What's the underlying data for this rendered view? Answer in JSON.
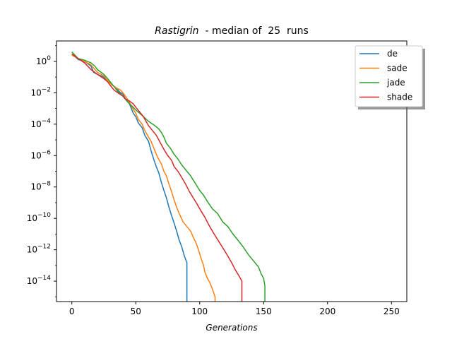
{
  "chart_data": {
    "type": "line",
    "title_italic": "Rastigrin",
    "title_rest": "  - median of  25  runs",
    "xlabel": "Generations",
    "ylabel": "",
    "xlim": [
      -12,
      262
    ],
    "ylim": [
      5e-16,
      20
    ],
    "y_scale": "log",
    "x_ticks": [
      0,
      50,
      100,
      150,
      200,
      250
    ],
    "x_tick_labels": [
      "0",
      "50",
      "100",
      "150",
      "200",
      "250"
    ],
    "y_ticks": [
      {
        "base": "10",
        "exp": "0",
        "value": 1
      },
      {
        "base": "10",
        "exp": "−2",
        "value": 0.01
      },
      {
        "base": "10",
        "exp": "−4",
        "value": 0.0001
      },
      {
        "base": "10",
        "exp": "−6",
        "value": 1e-06
      },
      {
        "base": "10",
        "exp": "−8",
        "value": 1e-08
      },
      {
        "base": "10",
        "exp": "−10",
        "value": 1e-10
      },
      {
        "base": "10",
        "exp": "−12",
        "value": 1e-12
      },
      {
        "base": "10",
        "exp": "−14",
        "value": 1e-14
      }
    ],
    "grid": false,
    "legend_position": "top-right",
    "series": [
      {
        "name": "de",
        "color": "#1f77b4",
        "points": [
          [
            0,
            3
          ],
          [
            5,
            1.3
          ],
          [
            10,
            1
          ],
          [
            15,
            0.5
          ],
          [
            17,
            0.2
          ],
          [
            20,
            0.15
          ],
          [
            25,
            0.1
          ],
          [
            27,
            0.06
          ],
          [
            30,
            0.05
          ],
          [
            32,
            0.03
          ],
          [
            33,
            0.025
          ],
          [
            35,
            0.02
          ],
          [
            37,
            0.012
          ],
          [
            40,
            0.008
          ],
          [
            42,
            0.004
          ],
          [
            44,
            0.0025
          ],
          [
            45,
            0.002
          ],
          [
            47,
            0.0008
          ],
          [
            48,
            0.0005
          ],
          [
            50,
            0.0003
          ],
          [
            52,
            0.00012
          ],
          [
            55,
            6e-05
          ],
          [
            57,
            2e-05
          ],
          [
            60,
            8e-06
          ],
          [
            62,
            2e-06
          ],
          [
            64,
            6e-07
          ],
          [
            66,
            2e-07
          ],
          [
            68,
            8e-08
          ],
          [
            70,
            2e-08
          ],
          [
            72,
            6e-09
          ],
          [
            74,
            2e-09
          ],
          [
            76,
            5e-10
          ],
          [
            78,
            1.5e-10
          ],
          [
            80,
            5e-11
          ],
          [
            82,
            1.5e-11
          ],
          [
            84,
            4e-12
          ],
          [
            86,
            1.5e-12
          ],
          [
            88,
            4e-13
          ],
          [
            90,
            1.5e-13
          ],
          [
            90,
            5e-16
          ]
        ]
      },
      {
        "name": "sade",
        "color": "#ff7f0e",
        "points": [
          [
            0,
            2.5
          ],
          [
            5,
            1.5
          ],
          [
            10,
            1
          ],
          [
            15,
            0.6
          ],
          [
            20,
            0.2
          ],
          [
            25,
            0.12
          ],
          [
            28,
            0.06
          ],
          [
            30,
            0.04
          ],
          [
            33,
            0.025
          ],
          [
            35,
            0.02
          ],
          [
            38,
            0.015
          ],
          [
            40,
            0.01
          ],
          [
            42,
            0.006
          ],
          [
            45,
            0.0025
          ],
          [
            47,
            0.0012
          ],
          [
            50,
            0.0005
          ],
          [
            52,
            0.0002
          ],
          [
            55,
            0.0001
          ],
          [
            57,
            4e-05
          ],
          [
            60,
            1.5e-05
          ],
          [
            62,
            8e-06
          ],
          [
            65,
            2e-06
          ],
          [
            67,
            8e-07
          ],
          [
            70,
            3e-07
          ],
          [
            72,
            1e-07
          ],
          [
            74,
            5e-08
          ],
          [
            76,
            1.5e-08
          ],
          [
            78,
            5e-09
          ],
          [
            80,
            1.5e-09
          ],
          [
            82,
            5e-10
          ],
          [
            84,
            2e-10
          ],
          [
            87,
            6e-11
          ],
          [
            90,
            3e-11
          ],
          [
            93,
            1.5e-11
          ],
          [
            95,
            6e-12
          ],
          [
            97,
            3e-12
          ],
          [
            99,
            1e-12
          ],
          [
            101,
            3e-13
          ],
          [
            103,
            1e-13
          ],
          [
            104,
            4e-14
          ],
          [
            106,
            1.5e-14
          ],
          [
            108,
            8e-15
          ],
          [
            110,
            3e-15
          ],
          [
            112,
            1e-15
          ],
          [
            112,
            5e-16
          ]
        ]
      },
      {
        "name": "jade",
        "color": "#2ca02c",
        "points": [
          [
            0,
            4
          ],
          [
            5,
            1.5
          ],
          [
            10,
            1.2
          ],
          [
            15,
            0.8
          ],
          [
            18,
            0.5
          ],
          [
            20,
            0.3
          ],
          [
            25,
            0.15
          ],
          [
            28,
            0.08
          ],
          [
            30,
            0.05
          ],
          [
            33,
            0.025
          ],
          [
            36,
            0.012
          ],
          [
            40,
            0.006
          ],
          [
            43,
            0.003
          ],
          [
            45,
            0.002
          ],
          [
            48,
            0.0012
          ],
          [
            50,
            0.0008
          ],
          [
            53,
            0.0005
          ],
          [
            56,
            0.0003
          ],
          [
            60,
            0.00015
          ],
          [
            65,
            8e-05
          ],
          [
            68,
            5e-05
          ],
          [
            70,
            3e-05
          ],
          [
            72,
            1.5e-05
          ],
          [
            74,
            6e-06
          ],
          [
            77,
            3e-06
          ],
          [
            80,
            1.2e-06
          ],
          [
            83,
            6e-07
          ],
          [
            86,
            2.5e-07
          ],
          [
            90,
            1e-07
          ],
          [
            93,
            5e-08
          ],
          [
            96,
            2e-08
          ],
          [
            100,
            6e-09
          ],
          [
            103,
            3e-09
          ],
          [
            106,
            1.2e-09
          ],
          [
            110,
            4e-10
          ],
          [
            114,
            2e-10
          ],
          [
            118,
            6e-11
          ],
          [
            122,
            3e-11
          ],
          [
            126,
            1e-11
          ],
          [
            130,
            4e-12
          ],
          [
            134,
            1.5e-12
          ],
          [
            138,
            5e-13
          ],
          [
            142,
            2e-13
          ],
          [
            146,
            8e-14
          ],
          [
            148,
            3e-14
          ],
          [
            150,
            1.5e-14
          ],
          [
            151,
            5e-15
          ],
          [
            151,
            5e-16
          ]
        ]
      },
      {
        "name": "shade",
        "color": "#d62728",
        "points": [
          [
            0,
            3
          ],
          [
            5,
            1.5
          ],
          [
            10,
            0.8
          ],
          [
            15,
            0.3
          ],
          [
            20,
            0.15
          ],
          [
            25,
            0.08
          ],
          [
            28,
            0.05
          ],
          [
            30,
            0.03
          ],
          [
            33,
            0.015
          ],
          [
            36,
            0.01
          ],
          [
            40,
            0.006
          ],
          [
            42,
            0.004
          ],
          [
            45,
            0.003
          ],
          [
            48,
            0.002
          ],
          [
            50,
            0.0012
          ],
          [
            53,
            0.0006
          ],
          [
            56,
            0.0003
          ],
          [
            58,
            0.00015
          ],
          [
            60,
            8e-05
          ],
          [
            63,
            4e-05
          ],
          [
            66,
            2e-05
          ],
          [
            68,
            1e-05
          ],
          [
            70,
            5e-06
          ],
          [
            72,
            2.5e-06
          ],
          [
            75,
            1e-06
          ],
          [
            78,
            5e-07
          ],
          [
            80,
            2e-07
          ],
          [
            83,
            1e-07
          ],
          [
            86,
            4e-08
          ],
          [
            89,
            1.5e-08
          ],
          [
            92,
            5e-09
          ],
          [
            95,
            2e-09
          ],
          [
            98,
            8e-10
          ],
          [
            101,
            3e-10
          ],
          [
            104,
            1.2e-10
          ],
          [
            107,
            4e-11
          ],
          [
            110,
            1.5e-11
          ],
          [
            113,
            6e-12
          ],
          [
            116,
            2.5e-12
          ],
          [
            119,
            1e-12
          ],
          [
            122,
            4e-13
          ],
          [
            125,
            1.5e-13
          ],
          [
            128,
            5e-14
          ],
          [
            131,
            2e-14
          ],
          [
            133,
            1e-14
          ],
          [
            133,
            5e-16
          ]
        ]
      }
    ]
  }
}
